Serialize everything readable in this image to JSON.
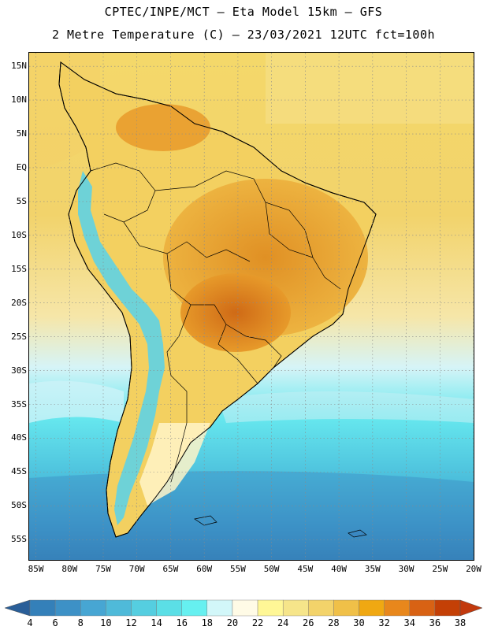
{
  "title": {
    "line1": "CPTEC/INPE/MCT –  Eta Model 15km – GFS",
    "line2": "2 Metre Temperature (C) – 23/03/2021 12UTC fct=100h"
  },
  "map": {
    "region": "South America",
    "lat_labels": [
      "15N",
      "10N",
      "5N",
      "EQ",
      "5S",
      "10S",
      "15S",
      "20S",
      "25S",
      "30S",
      "35S",
      "40S",
      "45S",
      "50S",
      "55S"
    ],
    "lat_values": [
      15,
      10,
      5,
      0,
      -5,
      -10,
      -15,
      -20,
      -25,
      -30,
      -35,
      -40,
      -45,
      -50,
      -55
    ],
    "lon_labels": [
      "85W",
      "80W",
      "75W",
      "70W",
      "65W",
      "60W",
      "55W",
      "50W",
      "45W",
      "40W",
      "35W",
      "30W",
      "25W",
      "20W"
    ],
    "lon_values": [
      -85,
      -80,
      -75,
      -70,
      -65,
      -60,
      -55,
      -50,
      -45,
      -40,
      -35,
      -30,
      -25,
      -20
    ],
    "lat_range": [
      -58,
      17
    ],
    "lon_range": [
      -86,
      -20
    ],
    "gridlines": "dotted"
  },
  "legend": {
    "labels": [
      "4",
      "6",
      "8",
      "10",
      "12",
      "14",
      "16",
      "18",
      "20",
      "22",
      "24",
      "26",
      "28",
      "30",
      "32",
      "34",
      "36",
      "38"
    ],
    "colors": [
      "#2c6fa8",
      "#3480b9",
      "#3d91c6",
      "#47a6d3",
      "#4fbad9",
      "#55cee0",
      "#5bdfe6",
      "#66f0f0",
      "#d2f7f9",
      "#fffbe6",
      "#fff796",
      "#f6e58a",
      "#f3d36a",
      "#f0c048",
      "#f0a812",
      "#e8871c",
      "#d86214",
      "#c44006"
    ],
    "under_color": "#2a5e98",
    "over_color": "#c2390d"
  }
}
